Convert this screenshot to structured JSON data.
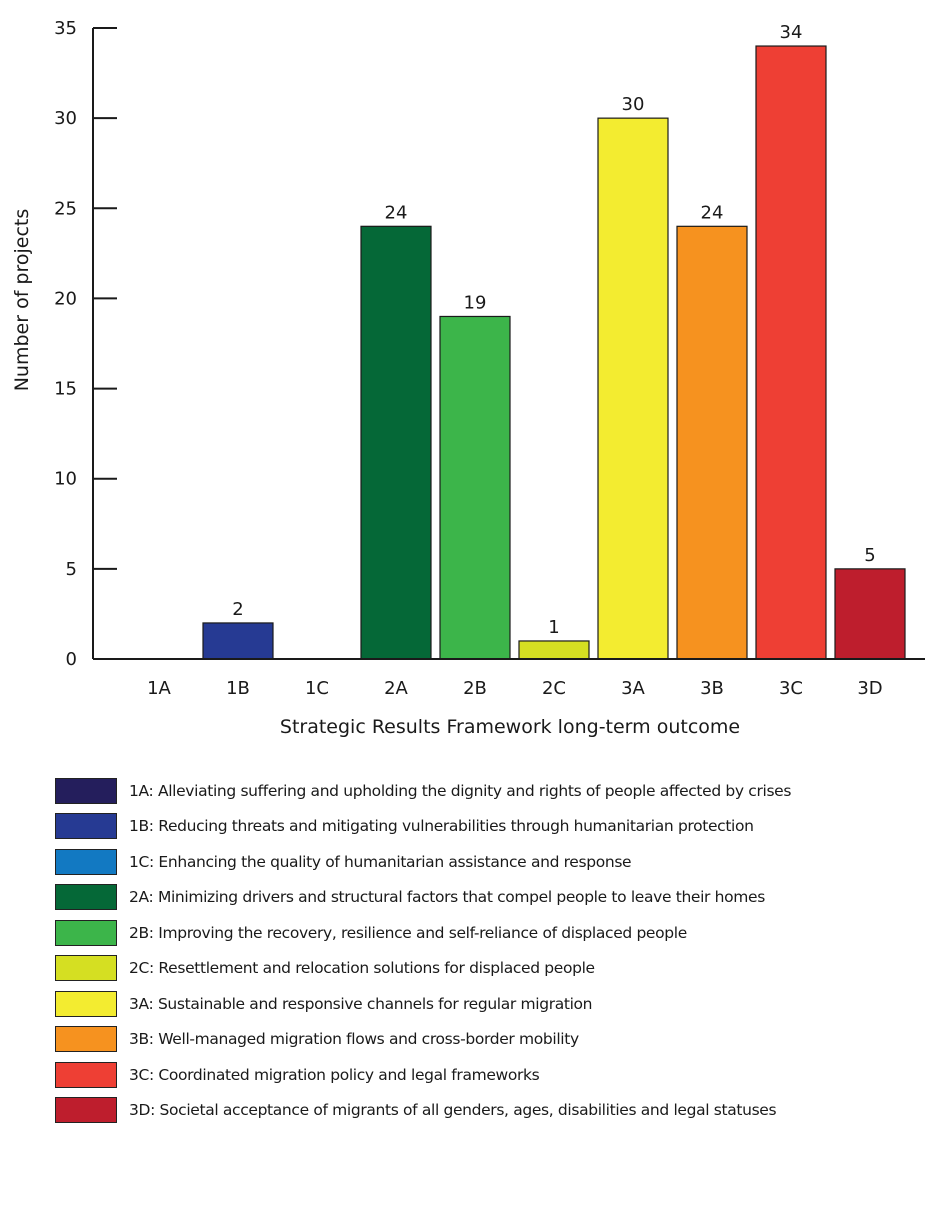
{
  "chart_data": {
    "type": "bar",
    "categories": [
      "1A",
      "1B",
      "1C",
      "2A",
      "2B",
      "2C",
      "3A",
      "3B",
      "3C",
      "3D"
    ],
    "values": [
      0,
      2,
      0,
      24,
      19,
      1,
      30,
      24,
      34,
      5
    ],
    "data_labels": [
      "",
      "2",
      "",
      "24",
      "19",
      "1",
      "30",
      "24",
      "34",
      "5"
    ],
    "colors": [
      "#241e5c",
      "#263a93",
      "#1279c2",
      "#056837",
      "#3cb54a",
      "#d5df22",
      "#f3ec30",
      "#f6921f",
      "#ee3f34",
      "#be1e2d"
    ],
    "xlabel": "Strategic Results Framework long-term outcome",
    "ylabel": "Number of projects",
    "ylim": [
      0,
      35
    ],
    "yticks": [
      "0",
      "5",
      "10",
      "15",
      "20",
      "25",
      "30",
      "35"
    ],
    "grid": false,
    "legend_position": "bottom"
  },
  "legend": [
    {
      "text": "1A: Alleviating suffering and upholding the dignity and rights of people affected by crises",
      "color": "#241e5c"
    },
    {
      "text": "1B: Reducing threats and mitigating vulnerabilities through humanitarian protection",
      "color": "#263a93"
    },
    {
      "text": "1C: Enhancing the quality of humanitarian assistance and response",
      "color": "#1279c2"
    },
    {
      "text": "2A: Minimizing drivers and structural factors that compel people to leave their homes",
      "color": "#056837"
    },
    {
      "text": "2B: Improving the recovery, resilience and self-reliance of displaced people",
      "color": "#3cb54a"
    },
    {
      "text": "2C: Resettlement and relocation solutions for displaced people",
      "color": "#d5df22"
    },
    {
      "text": "3A: Sustainable and responsive channels for regular migration",
      "color": "#f3ec30"
    },
    {
      "text": "3B: Well-managed migration flows and cross-border mobility",
      "color": "#f6921f"
    },
    {
      "text": "3C: Coordinated migration policy and legal frameworks",
      "color": "#ee3f34"
    },
    {
      "text": "3D: Societal acceptance of migrants of all genders, ages, disabilities and legal statuses",
      "color": "#be1e2d"
    }
  ]
}
